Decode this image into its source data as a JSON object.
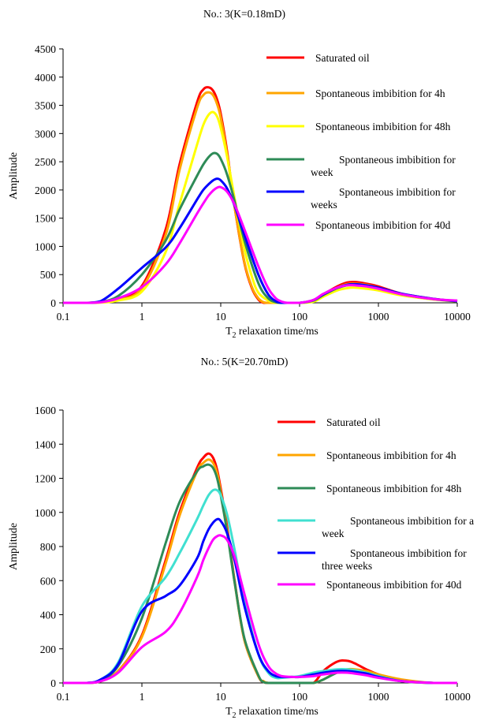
{
  "chart_data": [
    {
      "type": "line",
      "title": "No.: 3(K=0.18mD)",
      "xlabel_main": "T",
      "xlabel_sub": "2",
      "xlabel_rest": " relaxation time/ms",
      "ylabel": "Amplitude",
      "x_scale": "log",
      "xlim": [
        0.1,
        10000
      ],
      "ylim": [
        0,
        4500
      ],
      "x_ticks": [
        "0.1",
        "1",
        "10",
        "100",
        "1000",
        "10000"
      ],
      "y_ticks": [
        "0",
        "500",
        "1000",
        "1500",
        "2000",
        "2500",
        "3000",
        "3500",
        "4000",
        "4500"
      ],
      "grid": false,
      "legend_position": "top-right",
      "series": [
        {
          "name": "Saturated oil",
          "color": "#ff0000",
          "x": [
            0.1,
            0.2,
            0.3,
            0.5,
            1,
            2,
            3,
            5,
            6,
            7,
            8,
            9,
            10,
            12,
            15,
            20,
            25,
            30,
            35,
            40,
            60,
            100,
            150,
            200,
            300,
            400,
            500,
            700,
            1000,
            2000,
            5000,
            10000
          ],
          "y": [
            0,
            0,
            10,
            60,
            300,
            1300,
            2450,
            3550,
            3780,
            3820,
            3760,
            3600,
            3350,
            2700,
            1700,
            700,
            250,
            60,
            0,
            0,
            0,
            0,
            40,
            150,
            290,
            360,
            370,
            340,
            290,
            160,
            70,
            30
          ]
        },
        {
          "name": "Spontaneous imbibition for 4h",
          "color": "#ffa500",
          "x": [
            0.1,
            0.2,
            0.3,
            0.5,
            1,
            2,
            3,
            5,
            6,
            7,
            8,
            9,
            10,
            12,
            15,
            20,
            25,
            30,
            35,
            40,
            60,
            100,
            150,
            200,
            300,
            400,
            500,
            700,
            1000,
            2000,
            5000,
            10000
          ],
          "y": [
            0,
            0,
            8,
            50,
            260,
            1200,
            2350,
            3450,
            3680,
            3730,
            3680,
            3520,
            3280,
            2650,
            1700,
            720,
            270,
            80,
            10,
            0,
            0,
            0,
            30,
            140,
            270,
            330,
            340,
            320,
            270,
            150,
            65,
            28
          ]
        },
        {
          "name": "Spontaneous imbibition for 48h",
          "color": "#ffff00",
          "x": [
            0.1,
            0.2,
            0.3,
            0.5,
            1,
            2,
            3,
            5,
            6,
            7,
            8,
            9,
            10,
            12,
            15,
            20,
            25,
            30,
            40,
            50,
            60,
            100,
            150,
            200,
            300,
            400,
            500,
            700,
            1000,
            2000,
            5000,
            10000
          ],
          "y": [
            0,
            0,
            6,
            40,
            200,
            900,
            1750,
            2800,
            3150,
            3330,
            3380,
            3300,
            3100,
            2600,
            1850,
            950,
            450,
            180,
            40,
            0,
            0,
            0,
            20,
            110,
            220,
            260,
            270,
            250,
            220,
            130,
            60,
            25
          ]
        },
        {
          "name": "Spontaneous imbibition for a week",
          "color": "#2e8b57",
          "x": [
            0.1,
            0.2,
            0.3,
            0.5,
            1,
            2,
            3,
            5,
            6,
            7,
            8,
            9,
            10,
            12,
            15,
            20,
            30,
            40,
            50,
            60,
            100,
            150,
            200,
            300,
            400,
            500,
            700,
            1000,
            2000,
            5000,
            10000
          ],
          "y": [
            0,
            0,
            15,
            120,
            500,
            1100,
            1650,
            2250,
            2450,
            2580,
            2650,
            2640,
            2550,
            2280,
            1800,
            1100,
            350,
            80,
            10,
            0,
            0,
            40,
            140,
            260,
            310,
            320,
            300,
            260,
            150,
            65,
            28
          ]
        },
        {
          "name": "Spontaneous imbibition for three weeks",
          "color": "#0000ff",
          "x": [
            0.1,
            0.2,
            0.3,
            0.5,
            1,
            2,
            3,
            5,
            6,
            7,
            8,
            9,
            10,
            12,
            15,
            20,
            30,
            40,
            50,
            60,
            100,
            150,
            200,
            300,
            400,
            500,
            700,
            1000,
            2000,
            5000,
            10000
          ],
          "y": [
            0,
            0,
            30,
            250,
            620,
            980,
            1320,
            1830,
            2000,
            2100,
            2170,
            2200,
            2170,
            2030,
            1720,
            1200,
            500,
            150,
            30,
            0,
            0,
            50,
            150,
            270,
            320,
            330,
            310,
            270,
            160,
            70,
            30
          ]
        },
        {
          "name": "Spontaneous imbibition for 40d",
          "color": "#ff00ff",
          "x": [
            0.1,
            0.2,
            0.3,
            0.5,
            1,
            2,
            3,
            5,
            6,
            7,
            8,
            9,
            10,
            12,
            15,
            20,
            30,
            40,
            50,
            60,
            70,
            100,
            150,
            200,
            300,
            400,
            500,
            700,
            1000,
            2000,
            5000,
            10000
          ],
          "y": [
            0,
            0,
            10,
            80,
            280,
            680,
            1050,
            1580,
            1760,
            1900,
            1990,
            2040,
            2050,
            1970,
            1740,
            1300,
            650,
            260,
            80,
            20,
            0,
            0,
            50,
            160,
            270,
            310,
            310,
            290,
            250,
            150,
            65,
            40
          ]
        }
      ]
    },
    {
      "type": "line",
      "title": "No.: 5(K=20.70mD)",
      "xlabel_main": "T",
      "xlabel_sub": "2",
      "xlabel_rest": " relaxation time/ms",
      "ylabel": "Amplitude",
      "x_scale": "log",
      "xlim": [
        0.1,
        10000
      ],
      "ylim": [
        0,
        1600
      ],
      "x_ticks": [
        "0.1",
        "1",
        "10",
        "100",
        "1000",
        "10000"
      ],
      "y_ticks": [
        "0",
        "200",
        "400",
        "600",
        "800",
        "1000",
        "1200",
        "1400",
        "1600"
      ],
      "grid": false,
      "legend_position": "top-right",
      "series": [
        {
          "name": "Saturated oil",
          "color": "#ff0000",
          "x": [
            0.1,
            0.2,
            0.3,
            0.5,
            1,
            2,
            3,
            5,
            6,
            7,
            8,
            9,
            10,
            12,
            15,
            20,
            30,
            35,
            40,
            60,
            100,
            150,
            200,
            300,
            400,
            500,
            700,
            1000,
            2000,
            5000,
            10000
          ],
          "y": [
            0,
            0,
            10,
            70,
            280,
            720,
            1000,
            1260,
            1320,
            1345,
            1320,
            1250,
            1140,
            920,
            600,
            250,
            40,
            5,
            0,
            0,
            0,
            0,
            70,
            125,
            130,
            115,
            80,
            50,
            10,
            0,
            0
          ]
        },
        {
          "name": "Spontaneous imbibition for 4h",
          "color": "#ffa500",
          "x": [
            0.1,
            0.2,
            0.3,
            0.5,
            1,
            2,
            3,
            5,
            6,
            7,
            8,
            9,
            10,
            12,
            15,
            20,
            30,
            35,
            40,
            60,
            100,
            150,
            200,
            300,
            400,
            500,
            700,
            1000,
            2000,
            5000,
            10000
          ],
          "y": [
            0,
            0,
            10,
            70,
            270,
            700,
            980,
            1240,
            1290,
            1310,
            1290,
            1230,
            1120,
            900,
            590,
            250,
            40,
            10,
            0,
            0,
            0,
            0,
            20,
            65,
            80,
            80,
            70,
            50,
            20,
            0,
            0
          ]
        },
        {
          "name": "Spontaneous imbibition for 48h",
          "color": "#2e8b57",
          "x": [
            0.1,
            0.2,
            0.3,
            0.5,
            1,
            2,
            3,
            5,
            6,
            7,
            8,
            9,
            10,
            12,
            15,
            20,
            30,
            35,
            40,
            60,
            100,
            150,
            200,
            300,
            400,
            500,
            700,
            1000,
            2000,
            5000,
            10000
          ],
          "y": [
            0,
            0,
            15,
            100,
            380,
            820,
            1060,
            1240,
            1270,
            1280,
            1260,
            1200,
            1100,
            890,
            590,
            260,
            45,
            5,
            0,
            0,
            0,
            0,
            20,
            60,
            70,
            70,
            60,
            40,
            10,
            0,
            0
          ]
        },
        {
          "name": "Spontaneous imbibition for a week",
          "color": "#40e0d0",
          "x": [
            0.1,
            0.2,
            0.3,
            0.5,
            1,
            2,
            3,
            5,
            6,
            7,
            8,
            9,
            10,
            12,
            15,
            20,
            30,
            40,
            50,
            60,
            80,
            100,
            150,
            200,
            300,
            400,
            500,
            700,
            1000,
            2000,
            5000,
            10000
          ],
          "y": [
            0,
            0,
            20,
            120,
            450,
            620,
            760,
            960,
            1040,
            1100,
            1130,
            1130,
            1100,
            990,
            780,
            480,
            170,
            60,
            30,
            30,
            35,
            40,
            60,
            70,
            80,
            80,
            75,
            60,
            40,
            10,
            0,
            0
          ]
        },
        {
          "name": "Spontaneous imbibition for three weeks",
          "color": "#0000ff",
          "x": [
            0.1,
            0.2,
            0.3,
            0.5,
            1,
            2,
            3,
            5,
            6,
            7,
            8,
            9,
            10,
            12,
            15,
            20,
            30,
            40,
            50,
            60,
            80,
            100,
            150,
            200,
            300,
            400,
            500,
            700,
            1000,
            2000,
            5000,
            10000
          ],
          "y": [
            0,
            0,
            20,
            110,
            420,
            510,
            570,
            730,
            830,
            900,
            940,
            960,
            950,
            880,
            720,
            450,
            170,
            70,
            40,
            35,
            35,
            35,
            50,
            60,
            70,
            70,
            65,
            55,
            35,
            10,
            0,
            0
          ]
        },
        {
          "name": "Spontaneous imbibition for 40d",
          "color": "#ff00ff",
          "x": [
            0.1,
            0.2,
            0.3,
            0.5,
            1,
            2,
            3,
            5,
            6,
            7,
            8,
            9,
            10,
            12,
            15,
            20,
            30,
            40,
            50,
            60,
            80,
            100,
            150,
            200,
            300,
            400,
            500,
            700,
            1000,
            2000,
            5000,
            10000
          ],
          "y": [
            0,
            0,
            10,
            60,
            210,
            300,
            410,
            620,
            720,
            790,
            840,
            860,
            865,
            840,
            740,
            520,
            230,
            100,
            55,
            40,
            35,
            35,
            40,
            50,
            60,
            60,
            55,
            45,
            30,
            10,
            0,
            0
          ]
        }
      ]
    }
  ]
}
